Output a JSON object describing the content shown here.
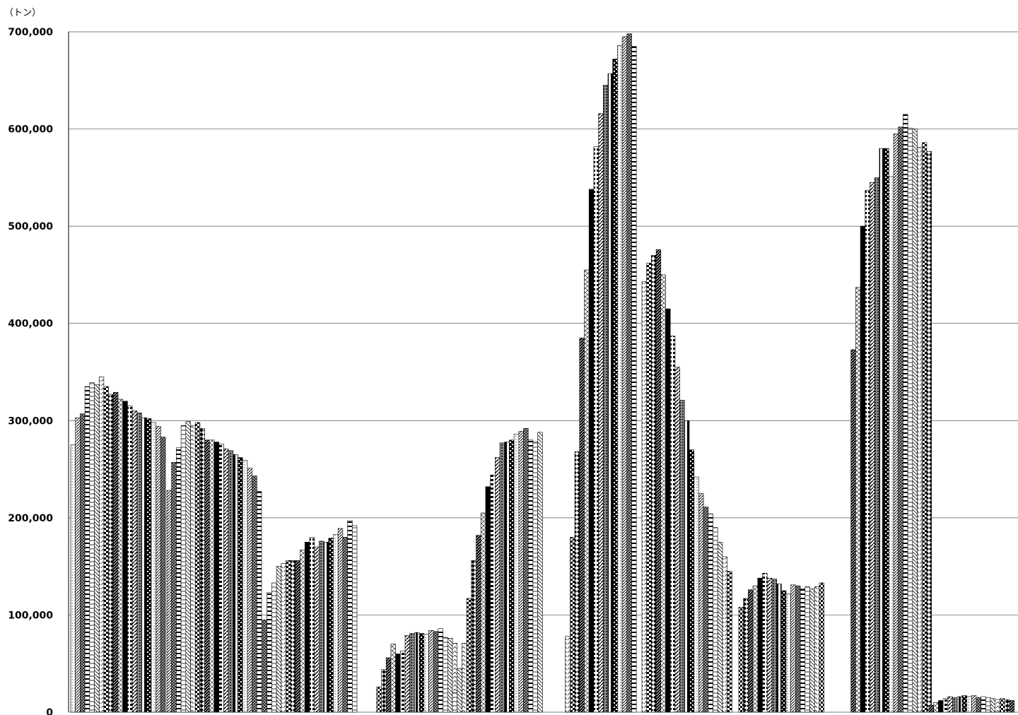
{
  "chart_data": {
    "type": "bar",
    "unit_label": "（トン）",
    "ylim": [
      0,
      700000
    ],
    "yticks": [
      "0",
      "100,000",
      "200,000",
      "300,000",
      "400,000",
      "500,000",
      "600,000",
      "700,000"
    ],
    "ytick_values": [
      0,
      100000,
      200000,
      300000,
      400000,
      500000,
      600000,
      700000
    ],
    "grid": true,
    "legend": "none",
    "groups": [
      [
        275000,
        303000,
        307000,
        335000,
        339000,
        337000,
        345000,
        335000,
        327000,
        329000,
        322000,
        320000,
        315000,
        310000,
        308000,
        303000,
        302000,
        298000,
        294000,
        283000
      ],
      [
        228000,
        257000,
        272000,
        295000,
        299000,
        295000,
        298000,
        292000,
        280000,
        280000,
        278000,
        276000,
        271000,
        269000,
        265000,
        262000,
        259000,
        251000,
        243000,
        227000
      ],
      [
        95000,
        123000,
        133000,
        150000,
        153000,
        156000,
        156000,
        156000,
        167000,
        175000,
        180000,
        170000,
        176000,
        175000,
        179000,
        183000,
        189000,
        180000,
        197000,
        192000
      ],
      [
        0,
        0,
        0,
        0,
        26000,
        44000,
        56000,
        70000,
        60000,
        63000,
        79000,
        81000,
        82000,
        81000,
        80000,
        84000,
        83000,
        86000,
        77000,
        76000,
        71000
      ],
      [
        20000,
        45000,
        71000,
        117000,
        156000,
        182000,
        205000,
        232000,
        244000,
        262000,
        277000,
        278000,
        280000,
        286000,
        289000,
        292000,
        280000,
        278000,
        288000
      ],
      [
        0,
        78000,
        180000,
        268000,
        385000,
        455000,
        538000,
        582000,
        616000,
        645000,
        657000,
        672000,
        686000,
        695000,
        698000,
        685000
      ],
      [
        443000,
        462000,
        470000,
        476000,
        450000,
        415000,
        387000,
        355000,
        321000,
        300000,
        270000,
        242000,
        225000,
        211000,
        204000,
        190000,
        175000,
        160000,
        145000
      ],
      [
        108000,
        117000,
        126000,
        130000,
        138000,
        143000,
        138000,
        137000,
        132000,
        125000,
        122000,
        131000,
        130000,
        127000,
        129000,
        127000,
        129000,
        133000
      ],
      [
        0,
        373000,
        437000,
        500000,
        537000,
        545000,
        550000,
        580000,
        580000,
        551000,
        595000,
        602000,
        615000,
        601000,
        600000,
        581000,
        586000,
        577000
      ],
      [
        7000,
        10000,
        12000,
        14000,
        16000,
        15000,
        16000,
        17000,
        16000,
        17000,
        15000,
        16000,
        15000,
        14000,
        13000,
        14000,
        13000,
        12000
      ]
    ]
  }
}
